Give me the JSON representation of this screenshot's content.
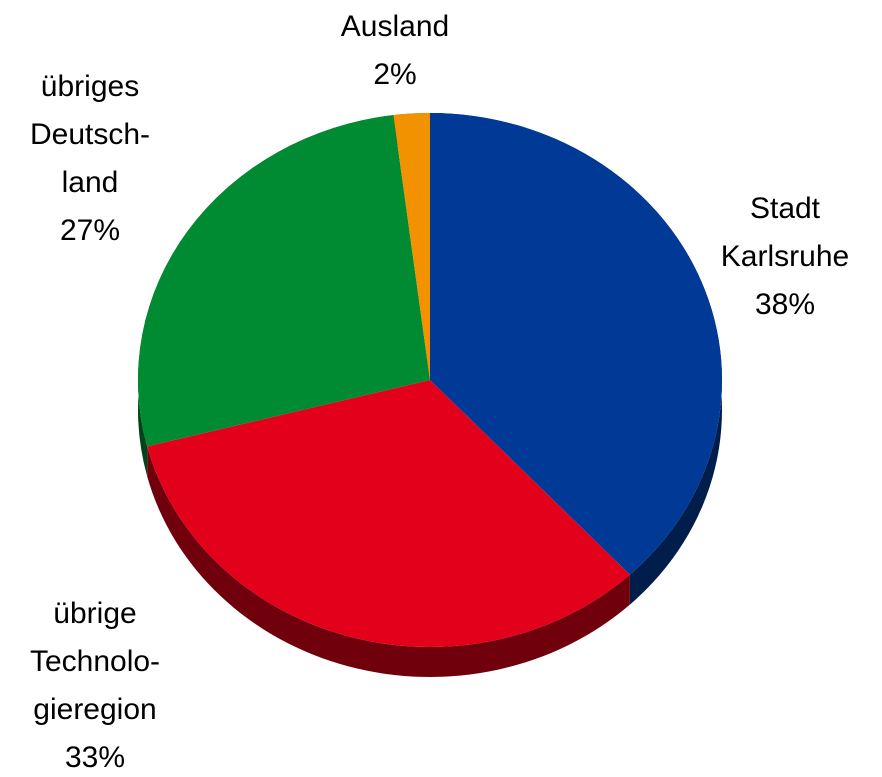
{
  "chart_data": {
    "type": "pie",
    "categories": [
      "Stadt\nKarlsruhe",
      "übrige\nTechnolo-\ngieregion",
      "übriges\nDeutsch-\nland",
      "Ausland"
    ],
    "values": [
      38,
      33,
      27,
      2
    ],
    "value_labels": [
      "38%",
      "33%",
      "27%",
      "2%"
    ],
    "colors": [
      "#003a96",
      "#e2001a",
      "#008a31",
      "#f39200"
    ]
  }
}
